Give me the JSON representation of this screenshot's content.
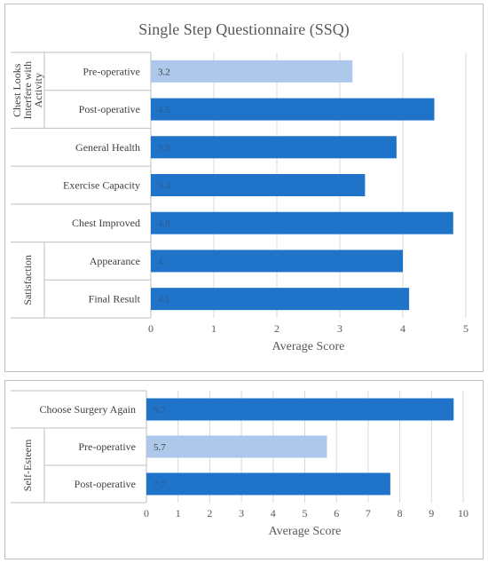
{
  "chart_data": [
    {
      "type": "bar",
      "orientation": "horizontal",
      "title": "Single Step Questionnaire (SSQ)",
      "xlabel": "Average Score",
      "xlim": [
        0,
        5
      ],
      "xticks": [
        "0",
        "1",
        "2",
        "3",
        "4",
        "5"
      ],
      "grid": true,
      "groups": [
        {
          "label": "Chest Looks Interfere with Activity",
          "start": 0,
          "end": 1
        },
        {
          "label": "Satisfaction",
          "start": 5,
          "end": 6
        }
      ],
      "categories": [
        "Pre-operative",
        "Post-operative",
        "General Health",
        "Exercise Capacity",
        "Chest Improved",
        "Appearance",
        "Final Result"
      ],
      "values": [
        3.2,
        4.5,
        3.9,
        3.4,
        4.8,
        4.0,
        4.1
      ],
      "data_labels": [
        "3.2",
        "4.5",
        "3.9",
        "3.4",
        "4.8",
        "4",
        "4.1"
      ],
      "highlight": [
        true,
        false,
        false,
        false,
        false,
        false,
        false
      ],
      "colors": {
        "primary": "#1f73c9",
        "highlight": "#adc8eb"
      }
    },
    {
      "type": "bar",
      "orientation": "horizontal",
      "title": "",
      "xlabel": "Average Score",
      "xlim": [
        0,
        10
      ],
      "xticks": [
        "0",
        "1",
        "2",
        "3",
        "4",
        "5",
        "6",
        "7",
        "8",
        "9",
        "10"
      ],
      "grid": true,
      "groups": [
        {
          "label": "Self-Esteem",
          "start": 1,
          "end": 2
        }
      ],
      "categories": [
        "Choose Surgery Again",
        "Pre-operative",
        "Post-operative"
      ],
      "values": [
        9.7,
        5.7,
        7.7
      ],
      "data_labels": [
        "9.7",
        "5.7",
        "7.7"
      ],
      "highlight": [
        false,
        true,
        false
      ],
      "colors": {
        "primary": "#1f73c9",
        "highlight": "#adc8eb"
      }
    }
  ]
}
